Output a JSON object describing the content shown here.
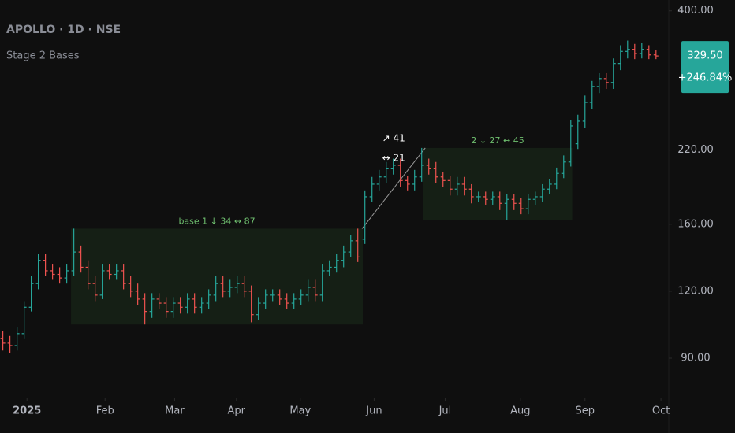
{
  "chart_data": {
    "type": "ohlc",
    "title": "APOLLO · 1D · NSE",
    "subtitle": "Stage 2 Bases",
    "log_scale": true,
    "grid": false,
    "up_color": "#26a69a",
    "down_color": "#ef5350",
    "ylim": [
      76,
      419
    ],
    "yticks": [
      {
        "value": 90,
        "label": "90.00"
      },
      {
        "value": 120,
        "label": "120.00"
      },
      {
        "value": 160,
        "label": "160.00"
      },
      {
        "value": 220,
        "label": "220.00"
      },
      {
        "value": 400,
        "label": "400.00"
      }
    ],
    "xlim": [
      -0.4,
      93.8
    ],
    "xticks": [
      {
        "value": 3.4,
        "label": "2025"
      },
      {
        "value": 14.4,
        "label": "Feb"
      },
      {
        "value": 24.2,
        "label": "Mar"
      },
      {
        "value": 32.9,
        "label": "Apr"
      },
      {
        "value": 41.9,
        "label": "May"
      },
      {
        "value": 52.3,
        "label": "Jun"
      },
      {
        "value": 62.3,
        "label": "Jul"
      },
      {
        "value": 72.9,
        "label": "Aug"
      },
      {
        "value": 82,
        "label": "Sep"
      },
      {
        "value": 92.7,
        "label": "Oct"
      }
    ],
    "open": [
      98,
      96,
      95,
      100,
      112,
      124,
      137,
      131,
      129,
      127,
      131,
      142,
      133,
      124,
      118,
      131,
      129,
      131,
      124,
      120,
      116,
      110,
      116,
      114,
      110,
      114,
      112,
      116,
      112,
      114,
      118,
      124,
      120,
      122,
      124,
      120,
      108.5,
      114,
      118,
      118,
      116,
      114,
      116,
      118,
      122,
      118,
      131,
      133,
      137,
      142,
      149,
      150,
      180,
      190,
      196,
      203,
      206,
      193,
      190,
      196,
      206,
      203,
      196,
      193,
      186,
      190,
      186,
      180,
      180,
      178,
      180,
      175,
      178,
      175,
      171,
      178,
      180,
      186,
      190,
      199,
      209,
      226,
      249,
      270,
      289,
      299,
      294,
      319,
      336,
      339,
      333,
      339,
      331
    ],
    "high": [
      101,
      99,
      103,
      115,
      128,
      141,
      141,
      135,
      133,
      135,
      157,
      146,
      137,
      128,
      135,
      135,
      135,
      135,
      128,
      124,
      119,
      119,
      119,
      117,
      117,
      117,
      119,
      119,
      117,
      121,
      128,
      128,
      126,
      128,
      128,
      123,
      117,
      121,
      121,
      121,
      119,
      119,
      121,
      126,
      126,
      135,
      137,
      141,
      146,
      153,
      157,
      185,
      196,
      202,
      209,
      212,
      212,
      197,
      202,
      222,
      212,
      209,
      200,
      197,
      196,
      196,
      190,
      184,
      184,
      184,
      184,
      182,
      182,
      179,
      182,
      184,
      190,
      194,
      204,
      215,
      250,
      256,
      278,
      296,
      306,
      306,
      326,
      345,
      352,
      347,
      349,
      345,
      338
    ],
    "low": [
      93,
      92,
      93,
      98,
      110,
      121,
      128,
      126,
      124,
      124,
      128,
      130,
      121,
      115,
      116,
      126,
      126,
      121,
      117,
      113,
      104,
      107,
      111,
      107,
      107,
      109,
      109,
      109,
      109,
      111,
      115,
      117,
      117,
      119,
      117,
      105,
      106,
      111,
      115,
      113,
      111,
      111,
      113,
      115,
      115,
      115,
      128,
      130,
      133,
      139,
      136,
      147,
      176,
      185,
      191,
      198,
      188,
      185,
      185,
      192,
      198,
      191,
      188,
      181,
      181,
      181,
      175,
      176,
      174,
      174,
      170,
      163,
      170,
      167,
      167,
      174,
      176,
      182,
      186,
      195,
      205,
      221,
      242,
      262,
      281,
      286,
      286,
      310,
      326,
      325,
      326,
      325,
      325
    ],
    "close": [
      96,
      95,
      100,
      112,
      124,
      137,
      131,
      129,
      127,
      131,
      142,
      133,
      124,
      118,
      131,
      129,
      131,
      124,
      120,
      116,
      110,
      116,
      114,
      110,
      114,
      112,
      116,
      112,
      114,
      118,
      124,
      120,
      122,
      124,
      120,
      108.5,
      114,
      118,
      118,
      116,
      114,
      116,
      118,
      122,
      118,
      131,
      133,
      137,
      142,
      149,
      139,
      180,
      190,
      196,
      203,
      206,
      193,
      190,
      196,
      206,
      203,
      196,
      193,
      186,
      190,
      186,
      180,
      180,
      178,
      180,
      175,
      178,
      175,
      171,
      178,
      180,
      186,
      190,
      199,
      209,
      244,
      249,
      270,
      289,
      299,
      294,
      319,
      336,
      339,
      333,
      339,
      331,
      329.5
    ],
    "bases": [
      {
        "label": "base 1 ↓ 34 ↔ 87",
        "start": 9.6,
        "end": 50.7,
        "top": 157,
        "bottom": 104
      },
      {
        "label": "2 ↓ 27 ↔ 45",
        "start": 59.2,
        "end": 80.2,
        "top": 222,
        "bottom": 163
      }
    ],
    "advance": {
      "labels": [
        "↗ 41",
        "↔ 21"
      ],
      "start": [
        50.6,
        157
      ],
      "end": [
        59.5,
        222
      ]
    },
    "last": {
      "value": 329.5,
      "value_label": "329.50",
      "change": 246.84,
      "change_label": "+246.84%"
    }
  }
}
